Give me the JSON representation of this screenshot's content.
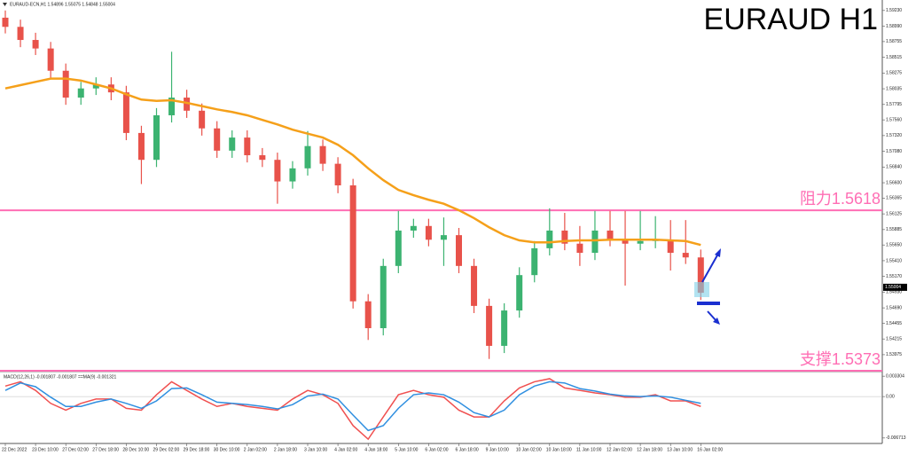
{
  "chart_data": [
    {
      "type": "candlestick",
      "title": "EURAUD H1",
      "header": "EURAUD-ECN,H1  1.54896 1.55075 1.54848 1.55004",
      "categories": [
        "22 Dec 2022",
        null,
        "23 Dec 10:00",
        null,
        "27 Dec 02:00",
        null,
        "27 Dec 18:00",
        null,
        "28 Dec 10:00",
        null,
        "29 Dec 02:00",
        null,
        "29 Dec 18:00",
        null,
        "30 Dec 10:00",
        null,
        "2 Jan 02:00",
        null,
        "2 Jan 18:00",
        null,
        "3 Jan 10:00",
        null,
        "4 Jan 02:00",
        null,
        "4 Jan 18:00",
        null,
        "5 Jan 10:00",
        null,
        "6 Jan 02:00",
        null,
        "6 Jan 18:00",
        null,
        "9 Jan 10:00",
        null,
        "10 Jan 02:00",
        null,
        "10 Jan 18:00",
        null,
        "11 Jan 10:00",
        null,
        "12 Jan 02:00",
        null,
        "12 Jan 18:00",
        null,
        "13 Jan 10:00",
        null,
        "16 Jan 02:00"
      ],
      "open": [
        1.5912,
        1.5898,
        1.5878,
        1.5865,
        1.5831,
        1.579,
        1.5804,
        1.581,
        1.5798,
        1.5736,
        1.5695,
        1.5763,
        1.579,
        1.577,
        1.5743,
        1.5709,
        1.5729,
        1.5702,
        1.5695,
        1.5662,
        1.5682,
        1.5716,
        1.5689,
        1.5656,
        1.5479,
        1.5438,
        1.5533,
        1.5587,
        1.5594,
        1.5573,
        1.558,
        1.5533,
        1.5472,
        1.5411,
        1.5465,
        1.5519,
        1.556,
        1.5587,
        1.5567,
        1.5553,
        1.5587,
        1.5573,
        1.5567,
        1.5571,
        1.5573,
        1.5553,
        1.5546
      ],
      "high": [
        1.5923,
        1.5909,
        1.5889,
        1.5875,
        1.5842,
        1.5814,
        1.5821,
        1.5821,
        1.5808,
        1.5747,
        1.5774,
        1.586,
        1.5802,
        1.5781,
        1.5754,
        1.574,
        1.574,
        1.5713,
        1.5706,
        1.5693,
        1.5739,
        1.5726,
        1.5699,
        1.5666,
        1.549,
        1.5544,
        1.5617,
        1.5605,
        1.5605,
        1.5607,
        1.5591,
        1.5544,
        1.5483,
        1.5476,
        1.5531,
        1.5571,
        1.5621,
        1.5614,
        1.5594,
        1.5617,
        1.5617,
        1.5617,
        1.5617,
        1.5609,
        1.5603,
        1.5603,
        1.5558
      ],
      "low": [
        1.5888,
        1.5867,
        1.5855,
        1.582,
        1.5779,
        1.5779,
        1.5794,
        1.5786,
        1.5725,
        1.5658,
        1.5684,
        1.5752,
        1.5759,
        1.5732,
        1.5698,
        1.5698,
        1.5691,
        1.5684,
        1.5628,
        1.5651,
        1.5671,
        1.5678,
        1.5644,
        1.5468,
        1.542,
        1.5427,
        1.5522,
        1.5576,
        1.5563,
        1.5533,
        1.5522,
        1.5461,
        1.5391,
        1.54,
        1.5454,
        1.5508,
        1.5549,
        1.5557,
        1.5533,
        1.5542,
        1.5563,
        1.5503,
        1.5557,
        1.556,
        1.5526,
        1.5536,
        1.5481
      ],
      "close": [
        1.5898,
        1.5878,
        1.5865,
        1.5831,
        1.579,
        1.5804,
        1.581,
        1.5798,
        1.5736,
        1.5695,
        1.5763,
        1.579,
        1.577,
        1.5743,
        1.5709,
        1.5729,
        1.5702,
        1.5695,
        1.5662,
        1.5682,
        1.5716,
        1.5689,
        1.5656,
        1.5479,
        1.5438,
        1.5533,
        1.5587,
        1.5594,
        1.5573,
        1.558,
        1.5533,
        1.5472,
        1.5411,
        1.5465,
        1.5519,
        1.556,
        1.5587,
        1.5567,
        1.5553,
        1.5587,
        1.5573,
        1.5567,
        1.5571,
        1.5573,
        1.5553,
        1.5546,
        1.5492
      ],
      "up_color": "#3cb371",
      "down_color": "#e8524a",
      "ma": {
        "color": "#f5a01a",
        "values": [
          1.5804,
          1.5809,
          1.5814,
          1.5819,
          1.5819,
          1.5816,
          1.581,
          1.5804,
          1.5795,
          1.5787,
          1.5785,
          1.5786,
          1.5782,
          1.5777,
          1.5772,
          1.5768,
          1.5763,
          1.5756,
          1.5749,
          1.5741,
          1.5735,
          1.5729,
          1.5718,
          1.5702,
          1.5682,
          1.5664,
          1.5649,
          1.5641,
          1.5634,
          1.5628,
          1.5618,
          1.5606,
          1.5592,
          1.558,
          1.5572,
          1.5569,
          1.5569,
          1.5571,
          1.5572,
          1.5572,
          1.5573,
          1.5573,
          1.5573,
          1.5573,
          1.5572,
          1.5571,
          1.5565
        ]
      },
      "levels": [
        {
          "value": 1.5618,
          "label": "阻力1.5618",
          "color": "#ff6eb4"
        },
        {
          "value": 1.5373,
          "label": "支撑1.5373",
          "color": "#ff6eb4"
        }
      ],
      "last_price": 1.55004,
      "ylim": [
        1.5373,
        1.5939
      ],
      "yticks": [
        {
          "value": 1.5923,
          "label": "1.59230"
        },
        {
          "value": 1.5899,
          "label": "1.58990"
        },
        {
          "value": 1.58755,
          "label": "1.58755"
        },
        {
          "value": 1.58515,
          "label": "1.58515"
        },
        {
          "value": 1.58275,
          "label": "1.58275"
        },
        {
          "value": 1.58035,
          "label": "1.58035"
        },
        {
          "value": 1.57795,
          "label": "1.57795"
        },
        {
          "value": 1.5756,
          "label": "1.57560"
        },
        {
          "value": 1.5732,
          "label": "1.57320"
        },
        {
          "value": 1.5708,
          "label": "1.57080"
        },
        {
          "value": 1.5684,
          "label": "1.56840"
        },
        {
          "value": 1.566,
          "label": "1.56600"
        },
        {
          "value": 1.56365,
          "label": "1.56365"
        },
        {
          "value": 1.56125,
          "label": "1.56125"
        },
        {
          "value": 1.55885,
          "label": "1.55885"
        },
        {
          "value": 1.5565,
          "label": "1.55650"
        },
        {
          "value": 1.5541,
          "label": "1.55410"
        },
        {
          "value": 1.5517,
          "label": "1.55170"
        },
        {
          "value": 1.5493,
          "label": "1.54930"
        },
        {
          "value": 1.5469,
          "label": "1.54690"
        },
        {
          "value": 1.54455,
          "label": "1.54455"
        },
        {
          "value": 1.54215,
          "label": "1.54215"
        },
        {
          "value": 1.53975,
          "label": "1.53975"
        }
      ]
    },
    {
      "type": "line",
      "title": "MACD(12,26,1) -0.001807 -0.001807 ==MA(9) -0.001321",
      "series": [
        {
          "color": "#f05050",
          "values": [
            0.0017,
            0.0024,
            0.001,
            -0.0011,
            -0.0022,
            -0.0011,
            -0.0004,
            -0.0004,
            -0.0019,
            -0.0022,
            0.0003,
            0.0024,
            0.001,
            -0.0004,
            -0.0016,
            -0.0011,
            -0.0016,
            -0.0019,
            -0.0022,
            -0.0004,
            0.001,
            0.0003,
            -0.0011,
            -0.0047,
            -0.0069,
            -0.0033,
            0.0003,
            0.001,
            0.0003,
            -0.0001,
            -0.0022,
            -0.0033,
            -0.0033,
            -0.0007,
            0.0014,
            0.0024,
            0.0029,
            0.0014,
            0.001,
            0.0006,
            0.0003,
            -0.0001,
            -0.0001,
            0.0003,
            -0.0007,
            -0.0007,
            -0.0016
          ]
        },
        {
          "color": "#2f8fe0",
          "values": [
            0.001,
            0.0022,
            0.0016,
            -0.0001,
            -0.0016,
            -0.0016,
            -0.0009,
            -0.0004,
            -0.0011,
            -0.0019,
            -0.0007,
            0.0013,
            0.0014,
            0.0003,
            -0.0009,
            -0.0011,
            -0.0013,
            -0.0016,
            -0.002,
            -0.0013,
            0.0001,
            0.0004,
            -0.0004,
            -0.003,
            -0.0055,
            -0.0047,
            -0.0019,
            0.0003,
            0.0006,
            0.0003,
            -0.0009,
            -0.0026,
            -0.0033,
            -0.0022,
            0.0003,
            0.0017,
            0.0024,
            0.0022,
            0.0013,
            0.0009,
            0.0004,
            0.0001,
            0,
            0.0001,
            -0.0001,
            -0.0006,
            -0.0011
          ]
        }
      ],
      "ylim": [
        -0.0076,
        0.0039
      ],
      "yticks": [
        0.003304,
        {
          "value": 0,
          "label": "0.00"
        },
        -0.006713
      ]
    }
  ]
}
